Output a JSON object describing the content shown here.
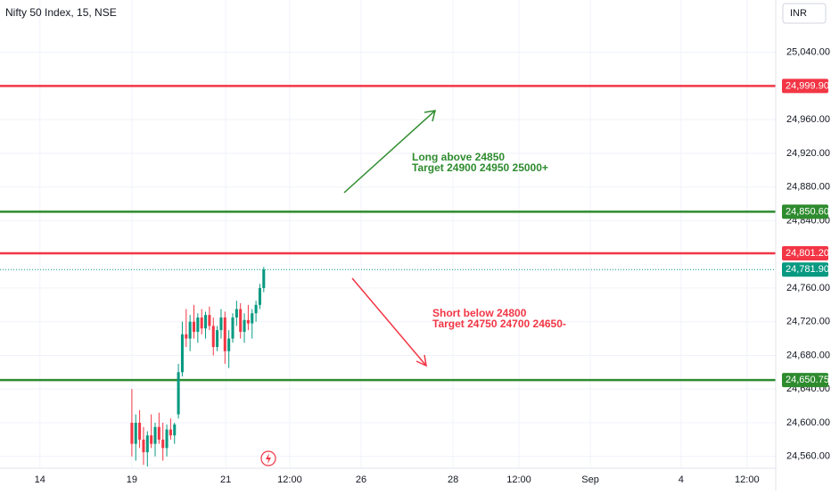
{
  "chart_data": {
    "type": "candlestick",
    "title": "Nifty 50 Index, 15, NSE",
    "currency": "INR",
    "up_color": "#089981",
    "down_color": "#f23645",
    "grid": true,
    "xlim": [
      0,
      200
    ],
    "ylim": [
      24546,
      25102
    ],
    "yticks": [
      {
        "value": 25040,
        "label": "25,040.00"
      },
      {
        "value": 24960,
        "label": "24,960.00"
      },
      {
        "value": 24920,
        "label": "24,920.00"
      },
      {
        "value": 24880,
        "label": "24,880.00"
      },
      {
        "value": 24840,
        "label": "24,840.00"
      },
      {
        "value": 24760,
        "label": "24,760.00"
      },
      {
        "value": 24720,
        "label": "24,720.00"
      },
      {
        "value": 24680,
        "label": "24,680.00"
      },
      {
        "value": 24640,
        "label": "24,640.00"
      },
      {
        "value": 24600,
        "label": "24,600.00"
      },
      {
        "value": 24560,
        "label": "24,560.00"
      }
    ],
    "xticks": [
      {
        "value": 10.3,
        "label": "14"
      },
      {
        "value": 34,
        "label": "19"
      },
      {
        "value": 58.2,
        "label": "21"
      },
      {
        "value": 74.7,
        "label": "12:00"
      },
      {
        "value": 93.1,
        "label": "26"
      },
      {
        "value": 116.8,
        "label": "28"
      },
      {
        "value": 133.8,
        "label": "12:00"
      },
      {
        "value": 152.2,
        "label": "Sep"
      },
      {
        "value": 175.6,
        "label": "4"
      },
      {
        "value": 192.6,
        "label": "12:00"
      }
    ],
    "x": [
      34,
      35,
      36,
      37,
      38,
      39,
      40,
      41,
      42,
      43,
      44,
      45,
      46,
      47,
      48,
      49,
      50,
      51,
      52,
      53,
      54,
      55,
      56,
      57,
      58,
      59,
      60,
      61,
      62,
      63,
      64,
      65,
      66,
      67,
      68
    ],
    "open": [
      24600,
      24575,
      24600,
      24580,
      24565,
      24585,
      24575,
      24595,
      24580,
      24570,
      24592,
      24585,
      24610,
      24660,
      24705,
      24700,
      24720,
      24708,
      24725,
      24712,
      24728,
      24715,
      24690,
      24710,
      24725,
      24685,
      24700,
      24725,
      24735,
      24708,
      24722,
      24718,
      24730,
      24740,
      24760
    ],
    "high": [
      24640,
      24610,
      24615,
      24595,
      24590,
      24610,
      24600,
      24612,
      24600,
      24598,
      24605,
      24600,
      24670,
      24720,
      24735,
      24728,
      24740,
      24730,
      24735,
      24732,
      24738,
      24725,
      24715,
      24735,
      24732,
      24710,
      24730,
      24745,
      24742,
      24730,
      24740,
      24735,
      24745,
      24765,
      24785
    ],
    "low": [
      24560,
      24555,
      24570,
      24550,
      24548,
      24570,
      24560,
      24575,
      24555,
      24560,
      24580,
      24575,
      24605,
      24655,
      24690,
      24685,
      24700,
      24695,
      24705,
      24700,
      24710,
      24680,
      24685,
      24700,
      24670,
      24665,
      24695,
      24715,
      24700,
      24695,
      24710,
      24700,
      24720,
      24735,
      24755
    ],
    "close": [
      24575,
      24600,
      24580,
      24565,
      24585,
      24575,
      24595,
      24580,
      24570,
      24592,
      24585,
      24598,
      24660,
      24705,
      24700,
      24720,
      24708,
      24725,
      24712,
      24728,
      24715,
      24690,
      24710,
      24725,
      24685,
      24700,
      24725,
      24735,
      24708,
      24722,
      24718,
      24730,
      24740,
      24760,
      24781.9
    ],
    "levels": [
      {
        "value": 24999.9,
        "label": "24,999.90",
        "color": "#f23645",
        "style": "solid"
      },
      {
        "value": 24850.6,
        "label": "24,850.60",
        "color": "#2e8b2e",
        "style": "solid"
      },
      {
        "value": 24801.2,
        "label": "24,801.20",
        "color": "#f23645",
        "style": "solid"
      },
      {
        "value": 24781.9,
        "label": "24,781.90",
        "color": "#089981",
        "style": "dotted"
      },
      {
        "value": 24650.75,
        "label": "24,650.75",
        "color": "#2e8b2e",
        "style": "solid"
      }
    ],
    "annotations": [
      {
        "lines": [
          "Long above 24850",
          "Target 24900 24950 25000+"
        ],
        "color": "#2e8b2e"
      },
      {
        "lines": [
          "Short below 24800",
          "Target 24750 24700 24650-"
        ],
        "color": "#f23645"
      }
    ]
  }
}
